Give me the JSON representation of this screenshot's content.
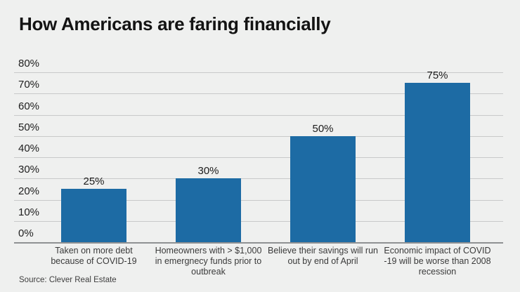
{
  "title": "How Americans are faring financially",
  "source": "Source: Clever Real Estate",
  "chart_data": {
    "type": "bar",
    "title": "How Americans are faring financially",
    "categories": [
      "Taken on more debt\nbecause of COVID-19",
      "Homeowners with > $1,000\nin emergnecy funds prior to\noutbreak",
      "Believe their savings will run\nout by end of April",
      "Economic impact of COVID\n-19 will be worse than 2008\nrecession"
    ],
    "values": [
      25,
      30,
      50,
      75
    ],
    "value_labels": [
      "25%",
      "30%",
      "50%",
      "75%"
    ],
    "xlabel": "",
    "ylabel": "",
    "ylim": [
      0,
      80
    ],
    "ytick_labels": [
      "0%",
      "10%",
      "20%",
      "30%",
      "40%",
      "50%",
      "60%",
      "70%",
      "80%"
    ],
    "grid": true,
    "legend": false,
    "bar_color": "#1d6ba4",
    "source": "Source: Clever Real Estate"
  }
}
